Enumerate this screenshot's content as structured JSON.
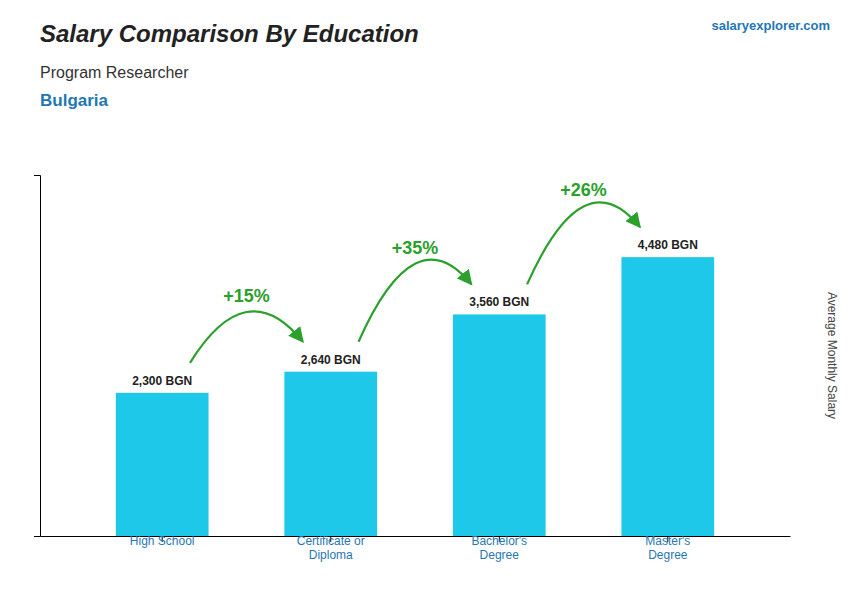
{
  "chart_data": {
    "type": "bar",
    "title": "Salary Comparison By Education",
    "subtitle": [
      "Program Researcher",
      "Bulgaria"
    ],
    "source": "salaryexplorer.com",
    "ylabel": "Average Monthly Salary",
    "categories": [
      "High School",
      "Certificate or\nDiploma",
      "Bachelor's\nDegree",
      "Master's\nDegree"
    ],
    "values": [
      2300,
      2640,
      3560,
      4480
    ],
    "value_labels": [
      "2,300 BGN",
      "2,640 BGN",
      "3,560 BGN",
      "4,480 BGN"
    ],
    "data_labels": true,
    "annotations": [
      "+15%",
      "+35%",
      "+26%"
    ],
    "color": "#1ec8e8",
    "ylim": [
      0,
      5800
    ],
    "yticks": [],
    "tick_labels": "x",
    "grid": false
  }
}
